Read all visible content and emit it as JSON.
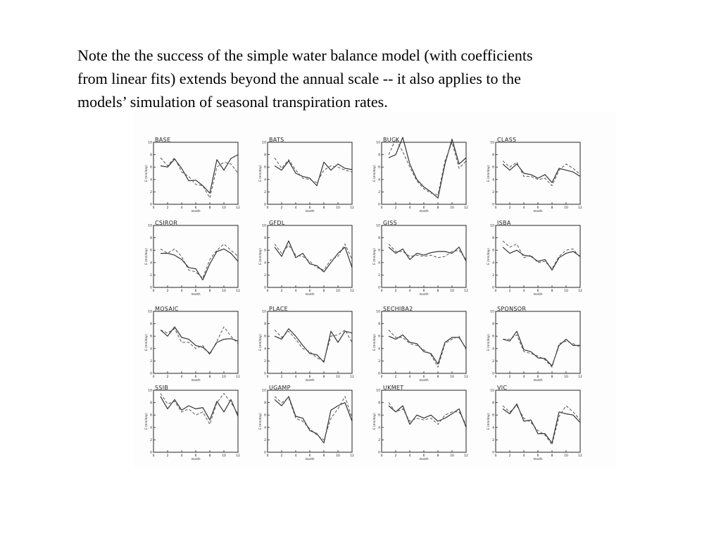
{
  "caption": {
    "line1": "Note the the success of the simple water balance model (with coefficients",
    "line2": "from linear fits) extends beyond the annual scale -- it also applies to the",
    "line3": "models’ simulation of seasonal transpiration rates."
  },
  "colors": {
    "modeled": "#333333",
    "fit": "#555555",
    "frame": "#222222"
  },
  "chart_data": [
    {
      "type": "line",
      "title": "BASE",
      "xlabel": "month",
      "ylabel": "E (mm/day)",
      "xlim": [
        0,
        12
      ],
      "ylim": [
        0,
        10
      ],
      "xticks": [
        "0",
        "2",
        "4",
        "6",
        "8",
        "10",
        "12"
      ],
      "yticks": [
        "0",
        "2",
        "4",
        "6",
        "8",
        "10"
      ],
      "x": [
        1,
        2,
        3,
        4,
        5,
        6,
        7,
        8,
        9,
        10,
        11,
        12
      ],
      "series": [
        {
          "style": "solid",
          "values": [
            6.2,
            6.0,
            7.3,
            5.8,
            3.8,
            3.9,
            3.0,
            1.8,
            7.2,
            5.5,
            7.4,
            8.0
          ]
        },
        {
          "style": "dashed",
          "values": [
            7.5,
            6.2,
            7.5,
            5.2,
            4.5,
            3.2,
            3.0,
            1.0,
            6.0,
            6.8,
            6.5,
            5.0
          ]
        }
      ]
    },
    {
      "type": "line",
      "title": "BATS",
      "xlabel": "month",
      "ylabel": "E (mm/day)",
      "xlim": [
        0,
        12
      ],
      "ylim": [
        0,
        10
      ],
      "xticks": [
        "0",
        "2",
        "4",
        "6",
        "8",
        "10",
        "12"
      ],
      "yticks": [
        "0",
        "2",
        "4",
        "6",
        "8",
        "10"
      ],
      "x": [
        1,
        2,
        3,
        4,
        5,
        6,
        7,
        8,
        9,
        10,
        11,
        12
      ],
      "series": [
        {
          "style": "solid",
          "values": [
            6.2,
            5.5,
            7.0,
            5.0,
            4.5,
            4.2,
            3.0,
            6.8,
            5.5,
            6.5,
            5.8,
            5.6
          ]
        },
        {
          "style": "dashed",
          "values": [
            7.5,
            5.8,
            7.2,
            5.5,
            4.2,
            4.0,
            3.5,
            5.5,
            6.2,
            6.0,
            5.5,
            5.2
          ]
        }
      ]
    },
    {
      "type": "line",
      "title": "BUCK",
      "xlabel": "month",
      "ylabel": "E (mm/day)",
      "xlim": [
        0,
        12
      ],
      "ylim": [
        0,
        10
      ],
      "xticks": [
        "0",
        "2",
        "4",
        "6",
        "8",
        "10",
        "12"
      ],
      "yticks": [
        "0",
        "2",
        "4",
        "6",
        "8",
        "10"
      ],
      "x": [
        1,
        2,
        3,
        4,
        5,
        6,
        7,
        8,
        9,
        10,
        11,
        12
      ],
      "series": [
        {
          "style": "solid",
          "values": [
            7.5,
            8.0,
            10.8,
            6.5,
            4.0,
            2.8,
            2.0,
            1.0,
            6.5,
            10.5,
            6.5,
            7.5
          ]
        },
        {
          "style": "dashed",
          "values": [
            8.0,
            10.5,
            8.5,
            6.0,
            3.8,
            2.5,
            1.8,
            1.5,
            7.0,
            10.0,
            5.8,
            7.0
          ]
        }
      ]
    },
    {
      "type": "line",
      "title": "CLASS",
      "xlabel": "month",
      "ylabel": "E (mm/day)",
      "xlim": [
        0,
        12
      ],
      "ylim": [
        0,
        10
      ],
      "xticks": [
        "0",
        "2",
        "4",
        "6",
        "8",
        "10",
        "12"
      ],
      "yticks": [
        "0",
        "2",
        "4",
        "6",
        "8",
        "10"
      ],
      "x": [
        1,
        2,
        3,
        4,
        5,
        6,
        7,
        8,
        9,
        10,
        11,
        12
      ],
      "series": [
        {
          "style": "solid",
          "values": [
            6.5,
            5.5,
            6.5,
            5.0,
            4.8,
            4.2,
            4.8,
            3.5,
            5.8,
            5.5,
            5.2,
            4.5
          ]
        },
        {
          "style": "dashed",
          "values": [
            7.0,
            6.0,
            6.8,
            4.5,
            4.5,
            4.0,
            4.2,
            3.0,
            5.5,
            6.5,
            5.8,
            4.8
          ]
        }
      ]
    },
    {
      "type": "line",
      "title": "CSIROR",
      "xlabel": "month",
      "ylabel": "E (mm/day)",
      "xlim": [
        0,
        12
      ],
      "ylim": [
        0,
        10
      ],
      "xticks": [
        "0",
        "2",
        "4",
        "6",
        "8",
        "10",
        "12"
      ],
      "yticks": [
        "0",
        "2",
        "4",
        "6",
        "8",
        "10"
      ],
      "x": [
        1,
        2,
        3,
        4,
        5,
        6,
        7,
        8,
        9,
        10,
        11,
        12
      ],
      "series": [
        {
          "style": "solid",
          "values": [
            5.5,
            5.5,
            5.2,
            4.5,
            3.2,
            3.0,
            1.2,
            3.8,
            5.8,
            6.2,
            5.5,
            4.2
          ]
        },
        {
          "style": "dashed",
          "values": [
            6.2,
            5.5,
            6.2,
            5.0,
            2.8,
            2.5,
            1.5,
            4.5,
            6.0,
            7.0,
            6.0,
            5.0
          ]
        }
      ]
    },
    {
      "type": "line",
      "title": "GFDL",
      "xlabel": "month",
      "ylabel": "E (mm/day)",
      "xlim": [
        0,
        12
      ],
      "ylim": [
        0,
        10
      ],
      "xticks": [
        "0",
        "2",
        "4",
        "6",
        "8",
        "10",
        "12"
      ],
      "yticks": [
        "0",
        "2",
        "4",
        "6",
        "8",
        "10"
      ],
      "x": [
        1,
        2,
        3,
        4,
        5,
        6,
        7,
        8,
        9,
        10,
        11,
        12
      ],
      "series": [
        {
          "style": "solid",
          "values": [
            6.5,
            5.0,
            7.5,
            4.8,
            5.5,
            3.8,
            3.5,
            2.5,
            4.0,
            5.5,
            6.5,
            3.2
          ]
        },
        {
          "style": "dashed",
          "values": [
            7.0,
            5.5,
            6.8,
            5.2,
            5.0,
            4.2,
            3.2,
            2.8,
            4.5,
            5.0,
            7.0,
            4.5
          ]
        }
      ]
    },
    {
      "type": "line",
      "title": "GISS",
      "xlabel": "month",
      "ylabel": "E (mm/day)",
      "xlim": [
        0,
        12
      ],
      "ylim": [
        0,
        10
      ],
      "xticks": [
        "0",
        "2",
        "4",
        "6",
        "8",
        "10",
        "12"
      ],
      "yticks": [
        "0",
        "2",
        "4",
        "6",
        "8",
        "10"
      ],
      "x": [
        1,
        2,
        3,
        4,
        5,
        6,
        7,
        8,
        9,
        10,
        11,
        12
      ],
      "series": [
        {
          "style": "solid",
          "values": [
            6.5,
            5.5,
            6.2,
            4.5,
            5.5,
            5.2,
            5.6,
            5.8,
            5.8,
            5.5,
            6.5,
            4.2
          ]
        },
        {
          "style": "dashed",
          "values": [
            7.0,
            5.8,
            5.8,
            5.0,
            5.2,
            5.0,
            5.2,
            4.8,
            5.0,
            5.8,
            6.0,
            4.5
          ]
        }
      ]
    },
    {
      "type": "line",
      "title": "ISBA",
      "xlabel": "month",
      "ylabel": "E (mm/day)",
      "xlim": [
        0,
        12
      ],
      "ylim": [
        0,
        10
      ],
      "xticks": [
        "0",
        "2",
        "4",
        "6",
        "8",
        "10",
        "12"
      ],
      "yticks": [
        "0",
        "2",
        "4",
        "6",
        "8",
        "10"
      ],
      "x": [
        1,
        2,
        3,
        4,
        5,
        6,
        7,
        8,
        9,
        10,
        11,
        12
      ],
      "series": [
        {
          "style": "solid",
          "values": [
            6.5,
            5.5,
            6.0,
            5.2,
            5.0,
            4.2,
            4.5,
            2.8,
            4.8,
            5.5,
            5.8,
            5.0
          ]
        },
        {
          "style": "dashed",
          "values": [
            7.5,
            6.5,
            7.0,
            4.8,
            5.2,
            4.0,
            4.2,
            3.0,
            5.0,
            6.0,
            6.2,
            4.8
          ]
        }
      ]
    },
    {
      "type": "line",
      "title": "MOSAIC",
      "xlabel": "month",
      "ylabel": "E (mm/day)",
      "xlim": [
        0,
        12
      ],
      "ylim": [
        0,
        10
      ],
      "xticks": [
        "0",
        "2",
        "4",
        "6",
        "8",
        "10",
        "12"
      ],
      "yticks": [
        "0",
        "2",
        "4",
        "6",
        "8",
        "10"
      ],
      "x": [
        1,
        2,
        3,
        4,
        5,
        6,
        7,
        8,
        9,
        10,
        11,
        12
      ],
      "series": [
        {
          "style": "solid",
          "values": [
            7.0,
            6.0,
            7.5,
            5.8,
            5.5,
            4.5,
            4.2,
            3.2,
            5.0,
            5.5,
            5.6,
            5.2
          ]
        },
        {
          "style": "dashed",
          "values": [
            7.0,
            6.5,
            7.2,
            5.0,
            5.0,
            4.0,
            4.5,
            3.0,
            5.2,
            7.5,
            6.0,
            4.8
          ]
        }
      ]
    },
    {
      "type": "line",
      "title": "PLACE",
      "xlabel": "month",
      "ylabel": "E (mm/day)",
      "xlim": [
        0,
        12
      ],
      "ylim": [
        0,
        10
      ],
      "xticks": [
        "0",
        "2",
        "4",
        "6",
        "8",
        "10",
        "12"
      ],
      "yticks": [
        "0",
        "2",
        "4",
        "6",
        "8",
        "10"
      ],
      "x": [
        1,
        2,
        3,
        4,
        5,
        6,
        7,
        8,
        9,
        10,
        11,
        12
      ],
      "series": [
        {
          "style": "solid",
          "values": [
            6.0,
            5.5,
            7.2,
            6.0,
            4.5,
            3.2,
            3.0,
            1.8,
            6.8,
            5.0,
            6.8,
            6.5
          ]
        },
        {
          "style": "dashed",
          "values": [
            7.0,
            5.8,
            6.8,
            5.5,
            4.0,
            3.5,
            2.5,
            2.0,
            6.0,
            6.2,
            7.0,
            5.0
          ]
        }
      ]
    },
    {
      "type": "line",
      "title": "SECHIBA2",
      "xlabel": "month",
      "ylabel": "E (mm/day)",
      "xlim": [
        0,
        12
      ],
      "ylim": [
        0,
        10
      ],
      "xticks": [
        "0",
        "2",
        "4",
        "6",
        "8",
        "10",
        "12"
      ],
      "yticks": [
        "0",
        "2",
        "4",
        "6",
        "8",
        "10"
      ],
      "x": [
        1,
        2,
        3,
        4,
        5,
        6,
        7,
        8,
        9,
        10,
        11,
        12
      ],
      "series": [
        {
          "style": "solid",
          "values": [
            6.0,
            5.5,
            6.2,
            5.0,
            4.8,
            3.5,
            3.2,
            1.5,
            5.0,
            5.8,
            5.8,
            4.0
          ]
        },
        {
          "style": "dashed",
          "values": [
            7.0,
            5.8,
            5.8,
            4.8,
            4.5,
            3.8,
            3.0,
            1.0,
            4.8,
            5.5,
            6.0,
            3.8
          ]
        }
      ]
    },
    {
      "type": "line",
      "title": "SPONSOR",
      "xlabel": "month",
      "ylabel": "E (mm/day)",
      "xlim": [
        0,
        12
      ],
      "ylim": [
        0,
        10
      ],
      "xticks": [
        "0",
        "2",
        "4",
        "6",
        "8",
        "10",
        "12"
      ],
      "yticks": [
        "0",
        "2",
        "4",
        "6",
        "8",
        "10"
      ],
      "x": [
        1,
        2,
        3,
        4,
        5,
        6,
        7,
        8,
        9,
        10,
        11,
        12
      ],
      "series": [
        {
          "style": "solid",
          "values": [
            5.5,
            5.2,
            6.8,
            3.8,
            3.5,
            2.5,
            2.4,
            1.2,
            4.5,
            5.5,
            4.5,
            4.5
          ]
        },
        {
          "style": "dashed",
          "values": [
            5.5,
            5.5,
            6.2,
            3.5,
            3.2,
            2.8,
            2.2,
            1.0,
            4.8,
            5.2,
            4.8,
            4.2
          ]
        }
      ]
    },
    {
      "type": "line",
      "title": "SSIB",
      "xlabel": "month",
      "ylabel": "E (mm/day)",
      "xlim": [
        0,
        12
      ],
      "ylim": [
        0,
        10
      ],
      "xticks": [
        "0",
        "2",
        "4",
        "6",
        "8",
        "10",
        "12"
      ],
      "yticks": [
        "0",
        "2",
        "4",
        "6",
        "8",
        "10"
      ],
      "x": [
        1,
        2,
        3,
        4,
        5,
        6,
        7,
        8,
        9,
        10,
        11,
        12
      ],
      "series": [
        {
          "style": "solid",
          "values": [
            9.0,
            7.0,
            8.5,
            6.8,
            7.5,
            7.0,
            7.2,
            5.2,
            8.2,
            6.5,
            8.5,
            5.8
          ]
        },
        {
          "style": "dashed",
          "values": [
            9.5,
            7.8,
            8.2,
            6.5,
            7.0,
            6.0,
            6.5,
            4.5,
            8.0,
            9.5,
            8.0,
            6.2
          ]
        }
      ]
    },
    {
      "type": "line",
      "title": "UGAMP",
      "xlabel": "month",
      "ylabel": "E (mm/day)",
      "xlim": [
        0,
        12
      ],
      "ylim": [
        0,
        10
      ],
      "xticks": [
        "0",
        "2",
        "4",
        "6",
        "8",
        "10",
        "12"
      ],
      "yticks": [
        "0",
        "2",
        "4",
        "6",
        "8",
        "10"
      ],
      "x": [
        1,
        2,
        3,
        4,
        5,
        6,
        7,
        8,
        9,
        10,
        11,
        12
      ],
      "series": [
        {
          "style": "solid",
          "values": [
            8.5,
            7.5,
            9.0,
            5.8,
            5.5,
            3.5,
            3.0,
            1.5,
            6.8,
            7.5,
            8.0,
            5.0
          ]
        },
        {
          "style": "dashed",
          "values": [
            9.0,
            8.0,
            8.8,
            5.5,
            5.0,
            3.8,
            2.8,
            2.0,
            5.5,
            7.0,
            9.0,
            5.5
          ]
        }
      ]
    },
    {
      "type": "line",
      "title": "UKMET",
      "xlabel": "month",
      "ylabel": "E (mm/day)",
      "xlim": [
        0,
        12
      ],
      "ylim": [
        0,
        10
      ],
      "xticks": [
        "0",
        "2",
        "4",
        "6",
        "8",
        "10",
        "12"
      ],
      "yticks": [
        "0",
        "2",
        "4",
        "6",
        "8",
        "10"
      ],
      "x": [
        1,
        2,
        3,
        4,
        5,
        6,
        7,
        8,
        9,
        10,
        11,
        12
      ],
      "series": [
        {
          "style": "solid",
          "values": [
            7.5,
            6.5,
            7.5,
            4.5,
            6.0,
            5.5,
            6.0,
            5.0,
            5.5,
            6.2,
            7.0,
            4.0
          ]
        },
        {
          "style": "dashed",
          "values": [
            8.0,
            6.5,
            7.0,
            5.0,
            5.5,
            5.2,
            5.5,
            4.5,
            6.0,
            6.5,
            6.5,
            4.5
          ]
        }
      ]
    },
    {
      "type": "line",
      "title": "VIC",
      "xlabel": "month",
      "ylabel": "E (mm/day)",
      "xlim": [
        0,
        12
      ],
      "ylim": [
        0,
        10
      ],
      "xticks": [
        "0",
        "2",
        "4",
        "6",
        "8",
        "10",
        "12"
      ],
      "yticks": [
        "0",
        "2",
        "4",
        "6",
        "8",
        "10"
      ],
      "x": [
        1,
        2,
        3,
        4,
        5,
        6,
        7,
        8,
        9,
        10,
        11,
        12
      ],
      "series": [
        {
          "style": "solid",
          "values": [
            7.0,
            6.2,
            7.8,
            5.0,
            5.2,
            3.0,
            3.0,
            1.5,
            6.5,
            6.2,
            6.0,
            4.8
          ]
        },
        {
          "style": "dashed",
          "values": [
            7.5,
            6.5,
            7.5,
            5.5,
            4.8,
            3.5,
            2.8,
            1.2,
            5.8,
            7.5,
            6.5,
            5.2
          ]
        }
      ]
    }
  ]
}
